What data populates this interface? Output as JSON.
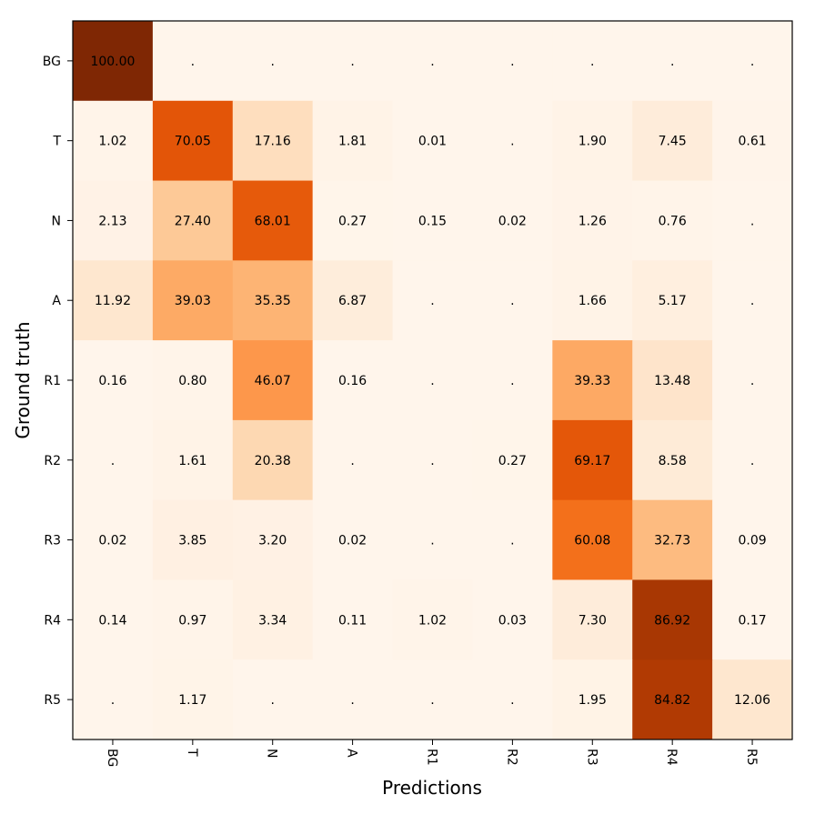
{
  "chart_data": {
    "type": "heatmap",
    "title": "",
    "xlabel": "Predictions",
    "ylabel": "Ground truth",
    "x_labels": [
      "BG",
      "T",
      "N",
      "A",
      "R1",
      "R2",
      "R3",
      "R4",
      "R5"
    ],
    "y_labels": [
      "BG",
      "T",
      "N",
      "A",
      "R1",
      "R2",
      "R3",
      "R4",
      "R5"
    ],
    "value_range": [
      0,
      100
    ],
    "colormap": "Oranges",
    "values": [
      [
        100.0,
        0,
        0,
        0,
        0,
        0,
        0,
        0,
        0
      ],
      [
        1.02,
        70.05,
        17.16,
        1.81,
        0.01,
        0,
        1.9,
        7.45,
        0.61
      ],
      [
        2.13,
        27.4,
        68.01,
        0.27,
        0.15,
        0.02,
        1.26,
        0.76,
        0
      ],
      [
        11.92,
        39.03,
        35.35,
        6.87,
        0,
        0,
        1.66,
        5.17,
        0
      ],
      [
        0.16,
        0.8,
        46.07,
        0.16,
        0,
        0,
        39.33,
        13.48,
        0
      ],
      [
        0,
        1.61,
        20.38,
        0,
        0,
        0.27,
        69.17,
        8.58,
        0
      ],
      [
        0.02,
        3.85,
        3.2,
        0.02,
        0,
        0,
        60.08,
        32.73,
        0.09
      ],
      [
        0.14,
        0.97,
        3.34,
        0.11,
        1.02,
        0.03,
        7.3,
        86.92,
        0.17
      ],
      [
        0,
        1.17,
        0,
        0,
        0,
        0,
        1.95,
        84.82,
        12.06
      ]
    ],
    "labels": [
      [
        "100.00",
        ".",
        ".",
        ".",
        ".",
        ".",
        ".",
        ".",
        "."
      ],
      [
        "1.02",
        "70.05",
        "17.16",
        "1.81",
        "0.01",
        ".",
        "1.90",
        "7.45",
        "0.61"
      ],
      [
        "2.13",
        "27.40",
        "68.01",
        "0.27",
        "0.15",
        "0.02",
        "1.26",
        "0.76",
        "."
      ],
      [
        "11.92",
        "39.03",
        "35.35",
        "6.87",
        ".",
        ".",
        "1.66",
        "5.17",
        "."
      ],
      [
        "0.16",
        "0.80",
        "46.07",
        "0.16",
        ".",
        ".",
        "39.33",
        "13.48",
        "."
      ],
      [
        ".",
        "1.61",
        "20.38",
        ".",
        ".",
        "0.27",
        "69.17",
        "8.58",
        "."
      ],
      [
        "0.02",
        "3.85",
        "3.20",
        "0.02",
        ".",
        ".",
        "60.08",
        "32.73",
        "0.09"
      ],
      [
        "0.14",
        "0.97",
        "3.34",
        "0.11",
        "1.02",
        "0.03",
        "7.30",
        "86.92",
        "0.17"
      ],
      [
        ".",
        "1.17",
        ".",
        ".",
        ".",
        ".",
        "1.95",
        "84.82",
        "12.06"
      ]
    ]
  }
}
